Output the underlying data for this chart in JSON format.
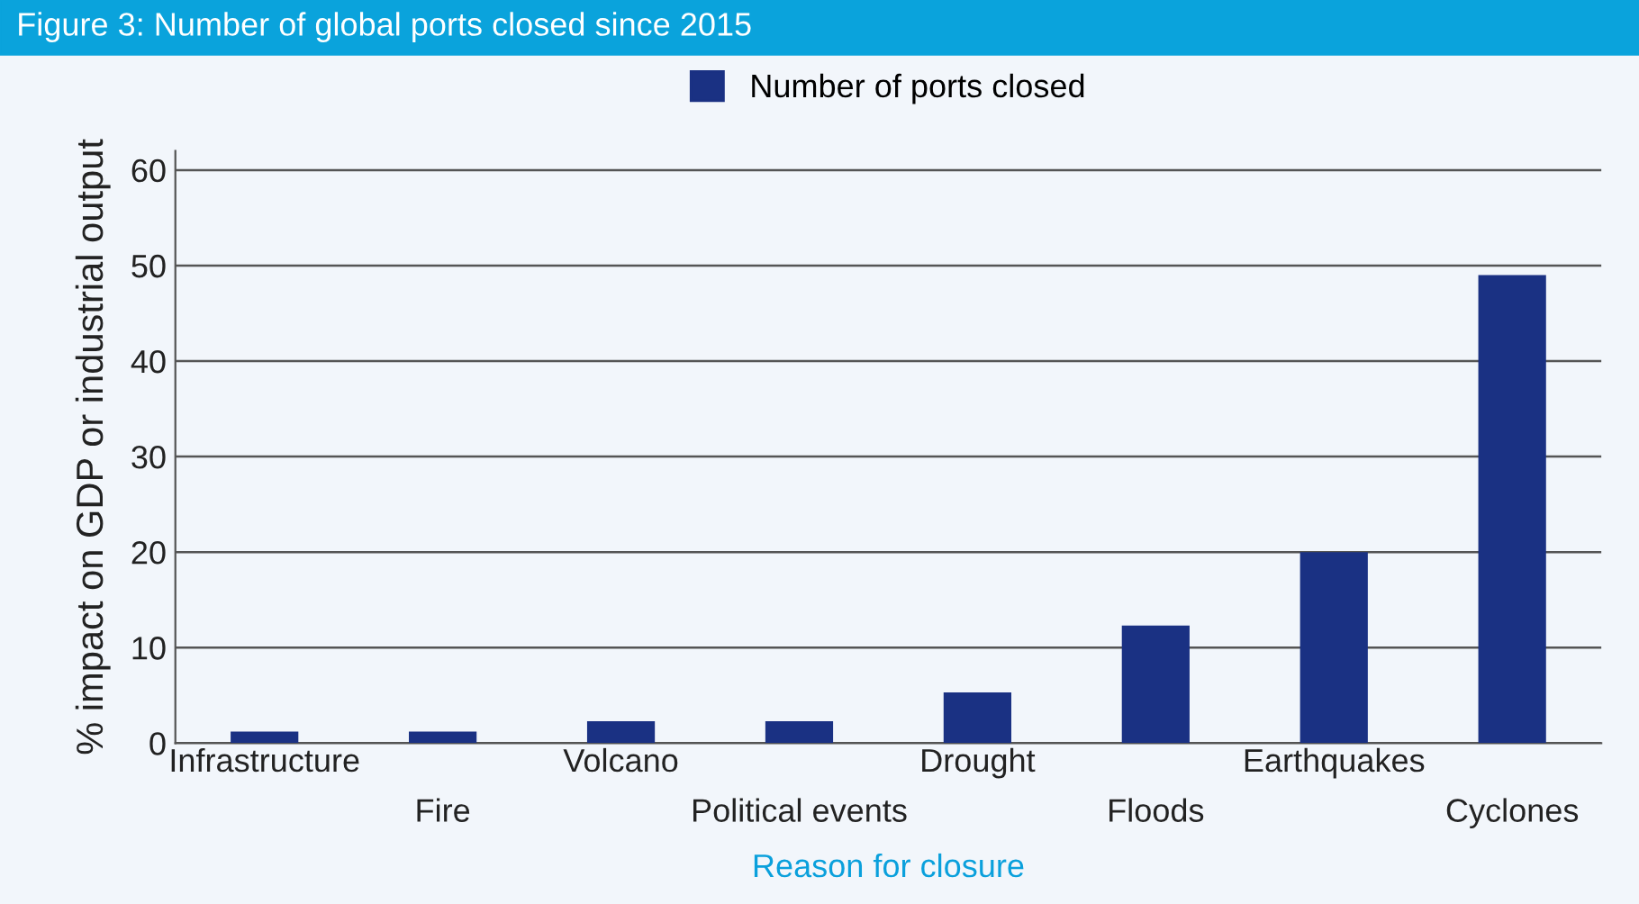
{
  "chart_data": {
    "type": "bar",
    "title": "Figure 3: Number of global ports closed since 2015",
    "xlabel": "Reason for closure",
    "ylabel": "% impact on GDP or industrial output",
    "categories": [
      "Infrastructure",
      "Fire",
      "Volcano",
      "Political events",
      "Drought",
      "Floods",
      "Earthquakes",
      "Cyclones"
    ],
    "series": [
      {
        "name": "Number of ports closed",
        "color": "#1a3183",
        "values": [
          1.2,
          1.2,
          2.3,
          2.3,
          5.3,
          12.3,
          20,
          49
        ]
      }
    ],
    "ylim": [
      0,
      62
    ],
    "yticks": [
      0,
      10,
      20,
      30,
      40,
      50,
      60
    ],
    "grid": "y",
    "legend": "top"
  }
}
